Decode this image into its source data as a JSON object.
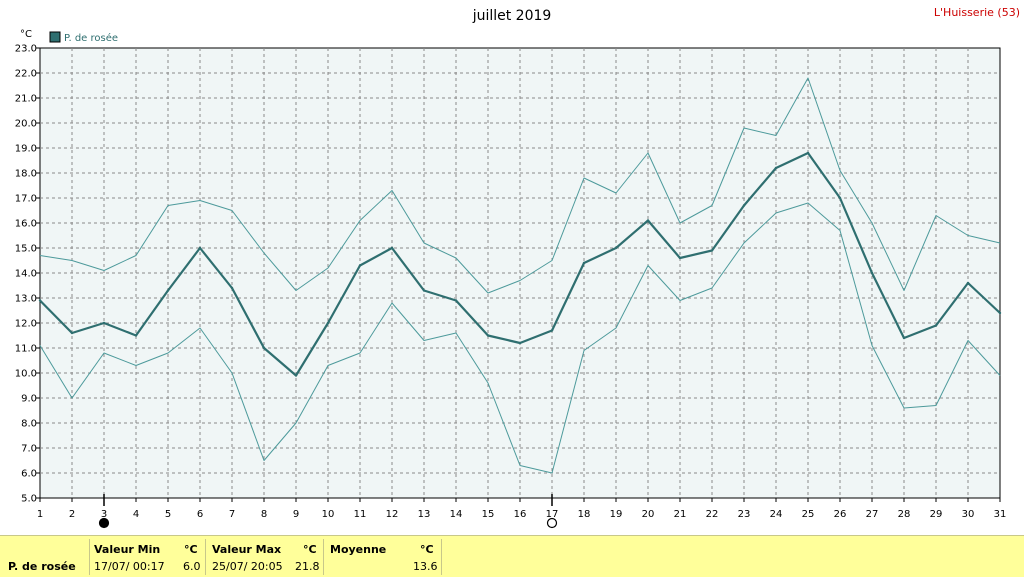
{
  "title": "juillet 2019",
  "station": "L'Huisserie (53)",
  "chart_data": {
    "type": "line",
    "unit": "°C",
    "ylim": [
      5.0,
      23.0
    ],
    "y_ticks": [
      "5.0",
      "6.0",
      "7.0",
      "8.0",
      "9.0",
      "10.0",
      "11.0",
      "12.0",
      "13.0",
      "14.0",
      "15.0",
      "16.0",
      "17.0",
      "18.0",
      "19.0",
      "20.0",
      "21.0",
      "22.0",
      "23.0"
    ],
    "x": [
      1,
      2,
      3,
      4,
      5,
      6,
      7,
      8,
      9,
      10,
      11,
      12,
      13,
      14,
      15,
      16,
      17,
      18,
      19,
      20,
      21,
      22,
      23,
      24,
      25,
      26,
      27,
      28,
      29,
      30,
      31
    ],
    "legend": {
      "label": "P. de rosée",
      "position": "top-left"
    },
    "grid": true,
    "series": [
      {
        "name": "P. de rosée",
        "role": "mean",
        "color": "#2f6f70",
        "values": [
          12.9,
          11.6,
          12.0,
          11.5,
          13.3,
          15.0,
          13.4,
          11.0,
          9.9,
          12.0,
          14.3,
          15.0,
          13.3,
          12.9,
          11.5,
          11.2,
          11.7,
          14.4,
          15.0,
          16.1,
          14.6,
          14.9,
          16.7,
          18.2,
          18.8,
          17.0,
          14.0,
          11.4,
          11.9,
          13.6,
          12.4
        ]
      },
      {
        "role": "max",
        "color": "#4d9a9b",
        "values": [
          14.7,
          14.5,
          14.1,
          14.7,
          16.7,
          16.9,
          16.5,
          14.8,
          13.3,
          14.2,
          16.1,
          17.3,
          15.2,
          14.6,
          13.2,
          13.7,
          14.5,
          17.8,
          17.2,
          18.8,
          16.0,
          16.7,
          19.8,
          19.5,
          21.8,
          18.1,
          16.0,
          13.3,
          16.3,
          15.5,
          15.2
        ]
      },
      {
        "role": "min",
        "color": "#4d9a9b",
        "values": [
          11.1,
          9.0,
          10.8,
          10.3,
          10.8,
          11.8,
          10.0,
          6.5,
          8.0,
          10.3,
          10.8,
          12.8,
          11.3,
          11.6,
          9.6,
          6.3,
          6.0,
          10.9,
          11.8,
          14.3,
          12.9,
          13.4,
          15.2,
          16.4,
          16.8,
          15.7,
          11.1,
          8.6,
          8.7,
          11.3,
          9.9
        ]
      }
    ],
    "markers": [
      {
        "day": 3,
        "symbol": "filled-circle"
      },
      {
        "day": 17,
        "symbol": "open-circle"
      }
    ]
  },
  "stats": {
    "row_label": "P. de rosée",
    "min": {
      "header": "Valeur Min",
      "unit": "°C",
      "date": "17/07/  00:17",
      "value": "6.0"
    },
    "max": {
      "header": "Valeur Max",
      "unit": "°C",
      "date": "25/07/  20:05",
      "value": "21.8"
    },
    "mean": {
      "header": "Moyenne",
      "unit": "°C",
      "value": "13.6"
    }
  }
}
